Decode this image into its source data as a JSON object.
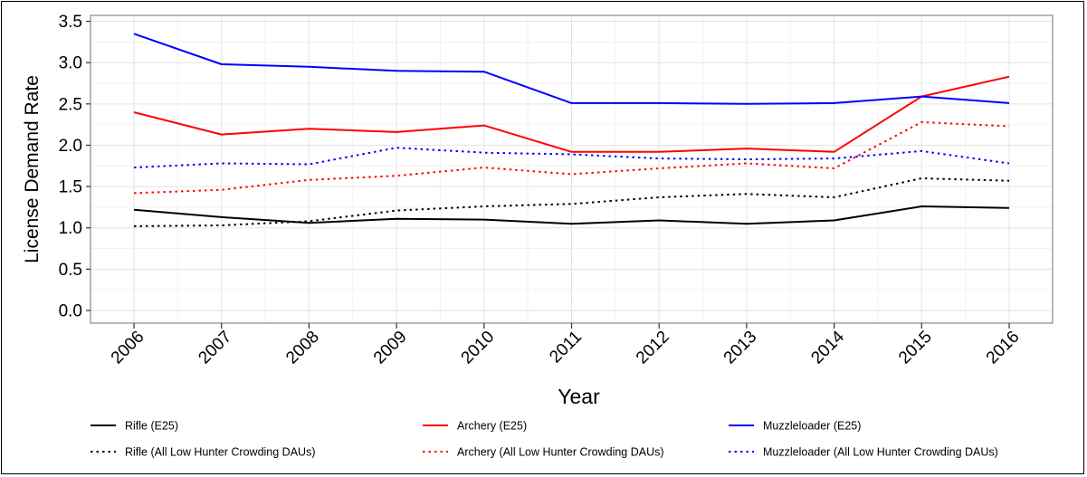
{
  "chart_data": {
    "type": "line",
    "title": "",
    "xlabel": "Year",
    "ylabel": "License Demand Rate",
    "categories": [
      "2006",
      "2007",
      "2008",
      "2009",
      "2010",
      "2011",
      "2012",
      "2013",
      "2014",
      "2015",
      "2016"
    ],
    "yticks": [
      "0.0",
      "0.5",
      "1.0",
      "1.5",
      "2.0",
      "2.5",
      "3.0",
      "3.5"
    ],
    "ylim": [
      0,
      3.55
    ],
    "grid": true,
    "legend_position": "bottom",
    "series": [
      {
        "name": "Rifle (E25)",
        "color": "#000000",
        "style": "solid",
        "values": [
          1.22,
          1.13,
          1.06,
          1.11,
          1.1,
          1.05,
          1.09,
          1.05,
          1.09,
          1.26,
          1.24
        ]
      },
      {
        "name": "Rifle (All Low Hunter Crowding DAUs)",
        "color": "#000000",
        "style": "dotted",
        "values": [
          1.02,
          1.03,
          1.08,
          1.21,
          1.26,
          1.29,
          1.37,
          1.41,
          1.37,
          1.6,
          1.57
        ]
      },
      {
        "name": "Archery (E25)",
        "color": "#ff0000",
        "style": "solid",
        "values": [
          2.4,
          2.13,
          2.2,
          2.16,
          2.24,
          1.92,
          1.92,
          1.96,
          1.92,
          2.59,
          2.83
        ]
      },
      {
        "name": "Archery (All Low Hunter Crowding DAUs)",
        "color": "#ff0000",
        "style": "dotted",
        "values": [
          1.42,
          1.46,
          1.58,
          1.63,
          1.73,
          1.65,
          1.72,
          1.78,
          1.72,
          2.28,
          2.23
        ]
      },
      {
        "name": "Muzzleloader (E25)",
        "color": "#0000ff",
        "style": "solid",
        "values": [
          3.35,
          2.98,
          2.95,
          2.9,
          2.89,
          2.51,
          2.51,
          2.5,
          2.51,
          2.59,
          2.51
        ]
      },
      {
        "name": "Muzzleloader (All Low Hunter Crowding DAUs)",
        "color": "#0000ff",
        "style": "dotted",
        "values": [
          1.73,
          1.78,
          1.77,
          1.97,
          1.91,
          1.89,
          1.84,
          1.83,
          1.84,
          1.93,
          1.78
        ]
      }
    ]
  }
}
